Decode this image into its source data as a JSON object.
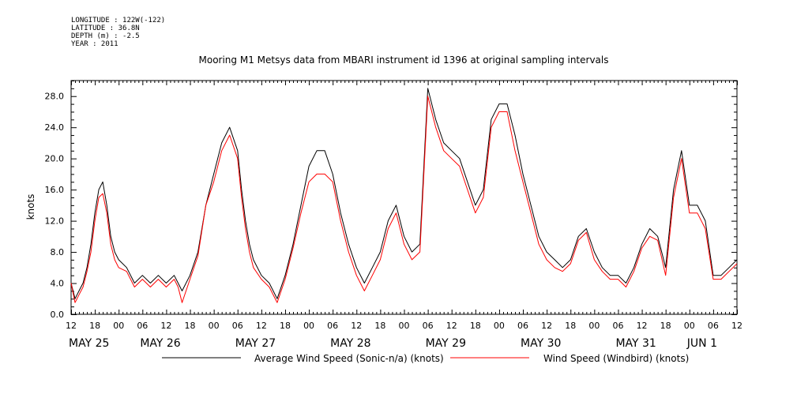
{
  "meta": {
    "longitude": "LONGITUDE : 122W(-122)",
    "latitude": "LATITUDE : 36.8N",
    "depth": "DEPTH (m) : -2.5",
    "year": "YEAR : 2011"
  },
  "chart_data": {
    "type": "line",
    "title": "Mooring M1 Metsys data from MBARI instrument id 1396 at original sampling intervals",
    "ylabel": "knots",
    "xlabel": "",
    "ylim": [
      0,
      30
    ],
    "xlim_hours": [
      0,
      168
    ],
    "grid": false,
    "legend_placement": "bottom",
    "y_ticks": [
      "0.0",
      "4.0",
      "8.0",
      "12.0",
      "16.0",
      "20.0",
      "24.0",
      "28.0"
    ],
    "y_tick_values": [
      0,
      4,
      8,
      12,
      16,
      20,
      24,
      28
    ],
    "x_hour_labels": [
      "12",
      "18",
      "00",
      "06",
      "12",
      "18",
      "00",
      "06",
      "12",
      "18",
      "00",
      "06",
      "12",
      "18",
      "00",
      "06",
      "12",
      "18",
      "00",
      "06",
      "12",
      "18",
      "00",
      "06",
      "12",
      "18",
      "00",
      "06",
      "12"
    ],
    "x_date_labels": [
      {
        "label": "MAY 25",
        "hour": 0
      },
      {
        "label": "MAY 26",
        "hour": 18
      },
      {
        "label": "MAY 27",
        "hour": 42
      },
      {
        "label": "MAY 28",
        "hour": 66
      },
      {
        "label": "MAY 29",
        "hour": 90
      },
      {
        "label": "MAY 30",
        "hour": 114
      },
      {
        "label": "MAY 31",
        "hour": 138
      },
      {
        "label": "JUN  1",
        "hour": 156
      }
    ],
    "x_note": "x values are hours from 2011-05-25 12:00",
    "series": [
      {
        "name": "Average Wind Speed (Sonic-n/a) (knots)",
        "color": "#000000",
        "x": [
          0,
          1,
          2,
          3,
          4,
          5,
          6,
          7,
          8,
          9,
          10,
          11,
          12,
          14,
          16,
          18,
          20,
          22,
          24,
          26,
          27,
          28,
          30,
          32,
          34,
          36,
          38,
          40,
          42,
          43,
          44,
          45,
          46,
          48,
          50,
          52,
          54,
          56,
          58,
          60,
          62,
          64,
          66,
          68,
          70,
          72,
          74,
          76,
          78,
          80,
          82,
          84,
          86,
          88,
          90,
          92,
          94,
          96,
          98,
          100,
          102,
          104,
          106,
          108,
          110,
          112,
          114,
          116,
          118,
          120,
          122,
          124,
          126,
          128,
          130,
          132,
          134,
          136,
          138,
          140,
          142,
          144,
          146,
          148,
          150,
          152,
          154,
          156,
          158,
          160,
          162,
          164,
          166,
          168
        ],
        "y": [
          4,
          2,
          3,
          4,
          6,
          9,
          13,
          16,
          17,
          14,
          10,
          8,
          7,
          6,
          4,
          5,
          4,
          5,
          4,
          5,
          4,
          3,
          5,
          8,
          14,
          18,
          22,
          24,
          21,
          16,
          12,
          9,
          7,
          5,
          4,
          2,
          5,
          9,
          14,
          19,
          21,
          21,
          18,
          13,
          9,
          6,
          4,
          6,
          8,
          12,
          14,
          10,
          8,
          9,
          29,
          25,
          22,
          21,
          20,
          17,
          14,
          16,
          25,
          27,
          27,
          23,
          18,
          14,
          10,
          8,
          7,
          6,
          7,
          10,
          11,
          8,
          6,
          5,
          5,
          4,
          6,
          9,
          11,
          10,
          6,
          16,
          21,
          14,
          14,
          12,
          5,
          5,
          6,
          7
        ]
      },
      {
        "name": "Wind Speed (Windbird) (knots)",
        "color": "#ff0000",
        "x": [
          0,
          1,
          2,
          3,
          4,
          5,
          6,
          7,
          8,
          9,
          10,
          11,
          12,
          14,
          16,
          18,
          20,
          22,
          24,
          26,
          27,
          28,
          30,
          32,
          34,
          36,
          38,
          40,
          42,
          43,
          44,
          45,
          46,
          48,
          50,
          52,
          54,
          56,
          58,
          60,
          62,
          64,
          66,
          68,
          70,
          72,
          74,
          76,
          78,
          80,
          82,
          84,
          86,
          88,
          90,
          92,
          94,
          96,
          98,
          100,
          102,
          104,
          106,
          108,
          110,
          112,
          114,
          116,
          118,
          120,
          122,
          124,
          126,
          128,
          130,
          132,
          134,
          136,
          138,
          140,
          142,
          144,
          146,
          148,
          150,
          152,
          154,
          156,
          158,
          160,
          162,
          164,
          166,
          168
        ],
        "y": [
          4,
          1.5,
          2.5,
          3.5,
          5.5,
          8,
          12,
          15,
          15.5,
          13,
          9,
          7,
          6,
          5.5,
          3.5,
          4.5,
          3.5,
          4.5,
          3.5,
          4.5,
          3.5,
          1.5,
          4.5,
          7.5,
          14,
          17,
          21,
          23,
          20,
          15,
          11,
          8,
          6,
          4.5,
          3.5,
          1.5,
          4.5,
          8.5,
          13,
          17,
          18,
          18,
          17,
          12,
          8,
          5,
          3,
          5,
          7,
          11,
          13,
          9,
          7,
          8,
          28,
          24,
          21,
          20,
          19,
          16,
          13,
          15,
          24,
          26,
          26,
          21,
          17,
          13,
          9,
          7,
          6,
          5.5,
          6.5,
          9.5,
          10.5,
          7,
          5.5,
          4.5,
          4.5,
          3.5,
          5.5,
          8.5,
          10,
          9.5,
          5,
          15,
          20,
          13,
          13,
          11,
          4.5,
          4.5,
          5.5,
          6.5
        ]
      }
    ]
  }
}
